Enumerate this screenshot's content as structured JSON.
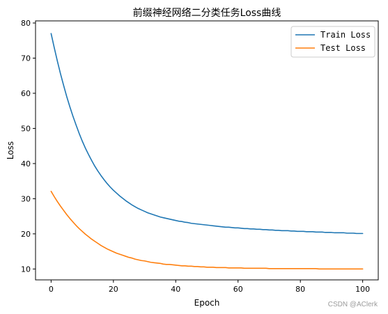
{
  "watermark": "CSDN @AClerk",
  "chart_data": {
    "type": "line",
    "title": "前缀神经网络二分类任务Loss曲线",
    "xlabel": "Epoch",
    "ylabel": "Loss",
    "xlim": [
      -5,
      105
    ],
    "ylim": [
      6.9,
      80.6
    ],
    "xticks": [
      0,
      20,
      40,
      60,
      80,
      100
    ],
    "yticks": [
      10,
      20,
      30,
      40,
      50,
      60,
      70,
      80
    ],
    "grid": false,
    "legend_position": "top-right",
    "x": [
      0,
      1,
      2,
      3,
      4,
      5,
      6,
      7,
      8,
      9,
      10,
      11,
      12,
      13,
      14,
      15,
      16,
      17,
      18,
      19,
      20,
      21,
      22,
      23,
      24,
      25,
      26,
      27,
      28,
      29,
      30,
      31,
      32,
      33,
      34,
      35,
      36,
      37,
      38,
      39,
      40,
      41,
      42,
      43,
      44,
      45,
      46,
      47,
      48,
      49,
      50,
      51,
      52,
      53,
      54,
      55,
      56,
      57,
      58,
      59,
      60,
      61,
      62,
      63,
      64,
      65,
      66,
      67,
      68,
      69,
      70,
      71,
      72,
      73,
      74,
      75,
      76,
      77,
      78,
      79,
      80,
      81,
      82,
      83,
      84,
      85,
      86,
      87,
      88,
      89,
      90,
      91,
      92,
      93,
      94,
      95,
      96,
      97,
      98,
      99,
      100
    ],
    "series": [
      {
        "name": "Train Loss",
        "color": "#1f77b4",
        "values": [
          77.0,
          73.0,
          69.2,
          65.6,
          62.3,
          59.1,
          56.2,
          53.5,
          51.0,
          48.6,
          46.4,
          44.4,
          42.6,
          40.9,
          39.3,
          37.9,
          36.6,
          35.4,
          34.3,
          33.3,
          32.4,
          31.6,
          30.8,
          30.1,
          29.4,
          28.8,
          28.2,
          27.7,
          27.2,
          26.8,
          26.4,
          26.0,
          25.7,
          25.4,
          25.1,
          24.8,
          24.6,
          24.4,
          24.2,
          24.0,
          23.8,
          23.6,
          23.5,
          23.3,
          23.2,
          23.0,
          22.9,
          22.8,
          22.7,
          22.6,
          22.5,
          22.4,
          22.3,
          22.2,
          22.1,
          22.0,
          21.9,
          21.9,
          21.8,
          21.7,
          21.7,
          21.6,
          21.5,
          21.5,
          21.4,
          21.4,
          21.3,
          21.3,
          21.2,
          21.2,
          21.1,
          21.1,
          21.0,
          21.0,
          20.9,
          20.9,
          20.9,
          20.8,
          20.8,
          20.7,
          20.7,
          20.7,
          20.6,
          20.6,
          20.6,
          20.5,
          20.5,
          20.5,
          20.4,
          20.4,
          20.4,
          20.3,
          20.3,
          20.3,
          20.3,
          20.2,
          20.2,
          20.2,
          20.1,
          20.1,
          20.1
        ]
      },
      {
        "name": "Test Loss",
        "color": "#ff7f0e",
        "values": [
          32.1,
          30.6,
          29.2,
          27.9,
          26.7,
          25.5,
          24.4,
          23.4,
          22.4,
          21.5,
          20.7,
          19.9,
          19.2,
          18.5,
          17.9,
          17.3,
          16.7,
          16.2,
          15.7,
          15.3,
          14.9,
          14.5,
          14.2,
          13.9,
          13.6,
          13.3,
          13.1,
          12.8,
          12.6,
          12.4,
          12.3,
          12.1,
          11.9,
          11.8,
          11.7,
          11.6,
          11.4,
          11.3,
          11.3,
          11.2,
          11.1,
          11.0,
          10.9,
          10.9,
          10.8,
          10.8,
          10.7,
          10.7,
          10.6,
          10.6,
          10.5,
          10.5,
          10.5,
          10.4,
          10.4,
          10.4,
          10.4,
          10.3,
          10.3,
          10.3,
          10.3,
          10.3,
          10.2,
          10.2,
          10.2,
          10.2,
          10.2,
          10.2,
          10.2,
          10.2,
          10.1,
          10.1,
          10.1,
          10.1,
          10.1,
          10.1,
          10.1,
          10.1,
          10.1,
          10.1,
          10.1,
          10.1,
          10.1,
          10.1,
          10.1,
          10.1,
          10.0,
          10.0,
          10.0,
          10.0,
          10.0,
          10.0,
          10.0,
          10.0,
          10.0,
          10.0,
          10.0,
          10.0,
          10.0,
          10.0,
          10.0
        ]
      }
    ]
  }
}
